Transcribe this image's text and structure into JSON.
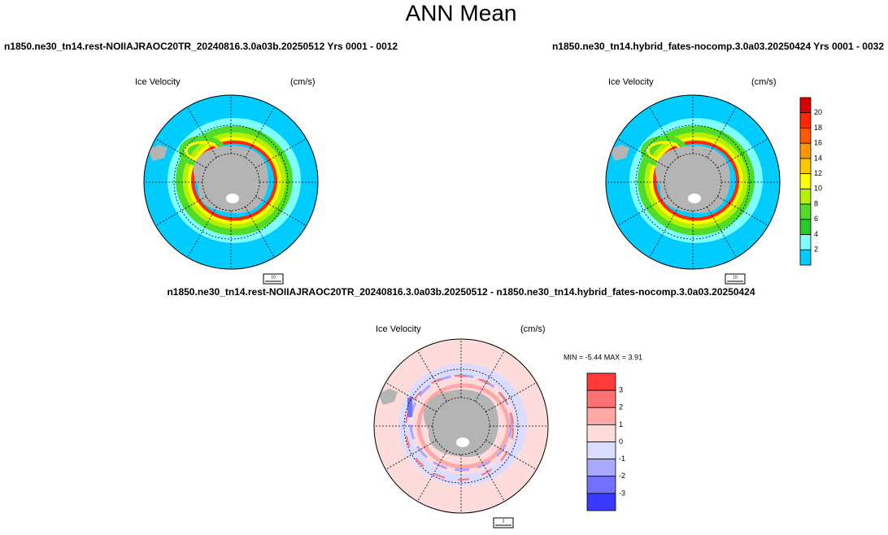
{
  "title": "ANN Mean",
  "panels": [
    {
      "title": "n1850.ne30_tn14.rest-NOIIAJRAOC20TR_20240816.3.0a03b.20250512  Yrs 0001 - 0012",
      "variable": "Ice Velocity",
      "units": "(cm/s)",
      "vector_ref": "10"
    },
    {
      "title": "n1850.ne30_tn14.hybrid_fates-nocomp.3.0a03.20250424  Yrs 0001 - 0032",
      "variable": "Ice Velocity",
      "units": "(cm/s)",
      "vector_ref": "10"
    },
    {
      "title": "n1850.ne30_tn14.rest-NOIIAJRAOC20TR_20240816.3.0a03b.20250512 - n1850.ne30_tn14.hybrid_fates-nocomp.3.0a03.20250424",
      "variable": "Ice Velocity",
      "units": "(cm/s)",
      "vector_ref": "2",
      "stats": "MIN =  -5.44 MAX =   3.91"
    }
  ],
  "colorbars": [
    {
      "labels": [
        20,
        18,
        16,
        14,
        12,
        10,
        8,
        6,
        4,
        2
      ],
      "colors": [
        "#d80000",
        "#ff2800",
        "#ff5a00",
        "#ff9600",
        "#ffc800",
        "#ffff00",
        "#b4f000",
        "#50dc28",
        "#28c828",
        "#80ffff",
        "#00ccff"
      ]
    },
    {
      "labels": [
        3,
        2,
        1,
        0,
        -1,
        -2,
        -3
      ],
      "colors": [
        "#ff3a3a",
        "#ff7272",
        "#ffa8a8",
        "#ffdcdc",
        "#dcdcff",
        "#a8a8ff",
        "#7272ff",
        "#3a3aff"
      ]
    }
  ]
}
